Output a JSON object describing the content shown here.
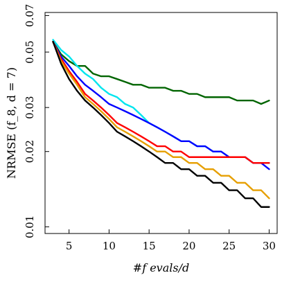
{
  "chart_data": {
    "type": "line",
    "title": "",
    "xlabel": "#f evals/d",
    "ylabel": "NRMSE (f_8, d = 7)",
    "xlim": [
      2,
      31
    ],
    "ylim": [
      0.0094,
      0.072
    ],
    "y_scale": "log",
    "grid": false,
    "legend": "none",
    "x_ticks": [
      5,
      10,
      15,
      20,
      25,
      30
    ],
    "x_tick_labels": [
      "5",
      "10",
      "15",
      "20",
      "25",
      "30"
    ],
    "y_ticks": [
      0.01,
      0.02,
      0.03,
      0.05,
      0.07
    ],
    "y_tick_labels": [
      "0.01",
      "0.02",
      "0.03",
      "0.05",
      "0.07"
    ],
    "series": [
      {
        "color": "#006400",
        "x": [
          3,
          4,
          5,
          6,
          7,
          8,
          9,
          10,
          11,
          12,
          13,
          14,
          15,
          16,
          17,
          18,
          19,
          20,
          21,
          22,
          23,
          24,
          25,
          26,
          27,
          28,
          29,
          30
        ],
        "values": [
          0.055,
          0.049,
          0.046,
          0.044,
          0.044,
          0.041,
          0.04,
          0.04,
          0.039,
          0.038,
          0.037,
          0.037,
          0.036,
          0.036,
          0.036,
          0.035,
          0.035,
          0.034,
          0.034,
          0.033,
          0.033,
          0.033,
          0.033,
          0.032,
          0.032,
          0.032,
          0.031,
          0.032
        ]
      },
      {
        "color": "#00e5ee",
        "x": [
          3,
          4,
          5,
          6,
          7,
          8,
          9,
          10,
          11,
          12,
          13,
          14,
          15,
          16,
          17,
          18,
          19,
          20,
          21,
          22,
          23,
          24,
          25,
          26,
          27,
          28,
          29,
          30
        ],
        "values": [
          0.056,
          0.051,
          0.048,
          0.044,
          0.041,
          0.039,
          0.036,
          0.034,
          0.033,
          0.031,
          0.03,
          0.028,
          0.026,
          0.025,
          0.024,
          0.023,
          0.022,
          0.022,
          0.021,
          0.021,
          0.02,
          0.02,
          0.019,
          0.019,
          0.019,
          0.018,
          0.018,
          0.018
        ]
      },
      {
        "color": "#0000ff",
        "x": [
          3,
          4,
          5,
          6,
          7,
          8,
          9,
          10,
          11,
          12,
          13,
          14,
          15,
          16,
          17,
          18,
          19,
          20,
          21,
          22,
          23,
          24,
          25,
          26,
          27,
          28,
          29,
          30
        ],
        "values": [
          0.055,
          0.048,
          0.044,
          0.04,
          0.037,
          0.035,
          0.033,
          0.031,
          0.03,
          0.029,
          0.028,
          0.027,
          0.026,
          0.025,
          0.024,
          0.023,
          0.022,
          0.022,
          0.021,
          0.021,
          0.02,
          0.02,
          0.019,
          0.019,
          0.019,
          0.018,
          0.018,
          0.017
        ]
      },
      {
        "color": "#ff0000",
        "x": [
          3,
          4,
          5,
          6,
          7,
          8,
          9,
          10,
          11,
          12,
          13,
          14,
          15,
          16,
          17,
          18,
          19,
          20,
          21,
          22,
          23,
          24,
          25,
          26,
          27,
          28,
          29,
          30
        ],
        "values": [
          0.055,
          0.047,
          0.042,
          0.038,
          0.034,
          0.032,
          0.03,
          0.028,
          0.026,
          0.025,
          0.024,
          0.023,
          0.022,
          0.021,
          0.021,
          0.02,
          0.02,
          0.019,
          0.019,
          0.019,
          0.019,
          0.019,
          0.019,
          0.019,
          0.019,
          0.018,
          0.018,
          0.018
        ]
      },
      {
        "color": "#e69f00",
        "x": [
          3,
          4,
          5,
          6,
          7,
          8,
          9,
          10,
          11,
          12,
          13,
          14,
          15,
          16,
          17,
          18,
          19,
          20,
          21,
          22,
          23,
          24,
          25,
          26,
          27,
          28,
          29,
          30
        ],
        "values": [
          0.055,
          0.046,
          0.041,
          0.037,
          0.033,
          0.031,
          0.029,
          0.027,
          0.025,
          0.024,
          0.023,
          0.022,
          0.021,
          0.02,
          0.02,
          0.019,
          0.019,
          0.018,
          0.018,
          0.017,
          0.017,
          0.016,
          0.016,
          0.015,
          0.015,
          0.014,
          0.014,
          0.013
        ]
      },
      {
        "color": "#000000",
        "x": [
          3,
          4,
          5,
          6,
          7,
          8,
          9,
          10,
          11,
          12,
          13,
          14,
          15,
          16,
          17,
          18,
          19,
          20,
          21,
          22,
          23,
          24,
          25,
          26,
          27,
          28,
          29,
          30
        ],
        "values": [
          0.055,
          0.045,
          0.039,
          0.035,
          0.032,
          0.03,
          0.028,
          0.026,
          0.024,
          0.023,
          0.022,
          0.021,
          0.02,
          0.019,
          0.018,
          0.018,
          0.017,
          0.017,
          0.016,
          0.016,
          0.015,
          0.015,
          0.014,
          0.014,
          0.013,
          0.013,
          0.012,
          0.012
        ]
      }
    ]
  }
}
